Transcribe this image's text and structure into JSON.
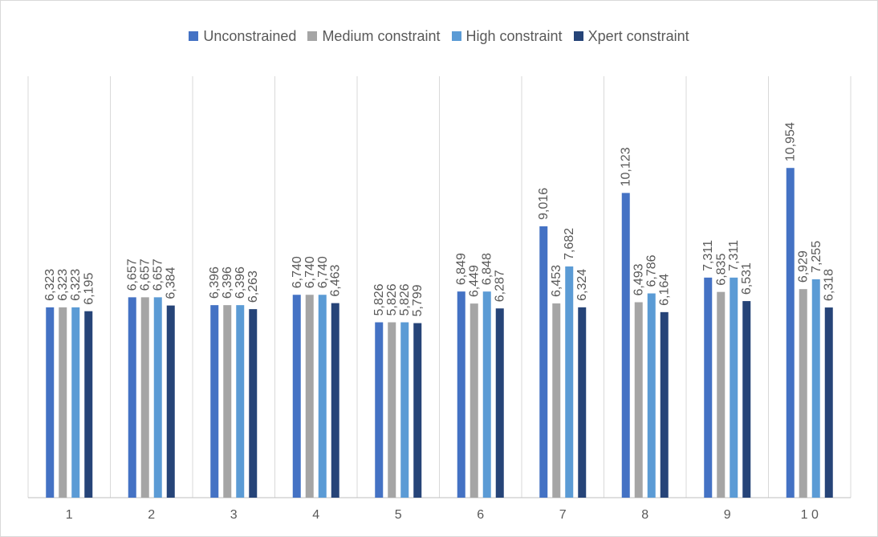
{
  "chart_data": {
    "type": "bar",
    "categories": [
      "1",
      "2",
      "3",
      "4",
      "5",
      "6",
      "7",
      "8",
      "9",
      "1 0"
    ],
    "series": [
      {
        "name": "Unconstrained",
        "color": "#4472c4",
        "values": [
          6323,
          6657,
          6396,
          6740,
          5826,
          6849,
          9016,
          10123,
          7311,
          10954
        ],
        "labels": [
          "6,323",
          "6,657",
          "6,396",
          "6,740",
          "5,826",
          "6,849",
          "9,016",
          "10,123",
          "7,311",
          "10,954"
        ]
      },
      {
        "name": "Medium constraint",
        "color": "#a5a5a5",
        "values": [
          6323,
          6657,
          6396,
          6740,
          5826,
          6449,
          6453,
          6493,
          6835,
          6929
        ],
        "labels": [
          "6,323",
          "6,657",
          "6,396",
          "6,740",
          "5,826",
          "6,449",
          "6,453",
          "6,493",
          "6,835",
          "6,929"
        ]
      },
      {
        "name": "High constraint",
        "color": "#5b9bd5",
        "values": [
          6323,
          6657,
          6396,
          6740,
          5826,
          6848,
          7682,
          6786,
          7311,
          7255
        ],
        "labels": [
          "6,323",
          "6,657",
          "6,396",
          "6,740",
          "5,826",
          "6,848",
          "7,682",
          "6,786",
          "7,311",
          "7,255"
        ]
      },
      {
        "name": "Xpert constraint",
        "color": "#264478",
        "values": [
          6195,
          6384,
          6263,
          6463,
          5799,
          6287,
          6324,
          6164,
          6531,
          6318
        ],
        "labels": [
          "6,195",
          "6,384",
          "6,263",
          "6,463",
          "5,799",
          "6,287",
          "6,324",
          "6,164",
          "6,531",
          "6,318"
        ]
      }
    ],
    "ylim": [
      0,
      14000
    ],
    "grid": "vertical",
    "legend_position": "top"
  }
}
